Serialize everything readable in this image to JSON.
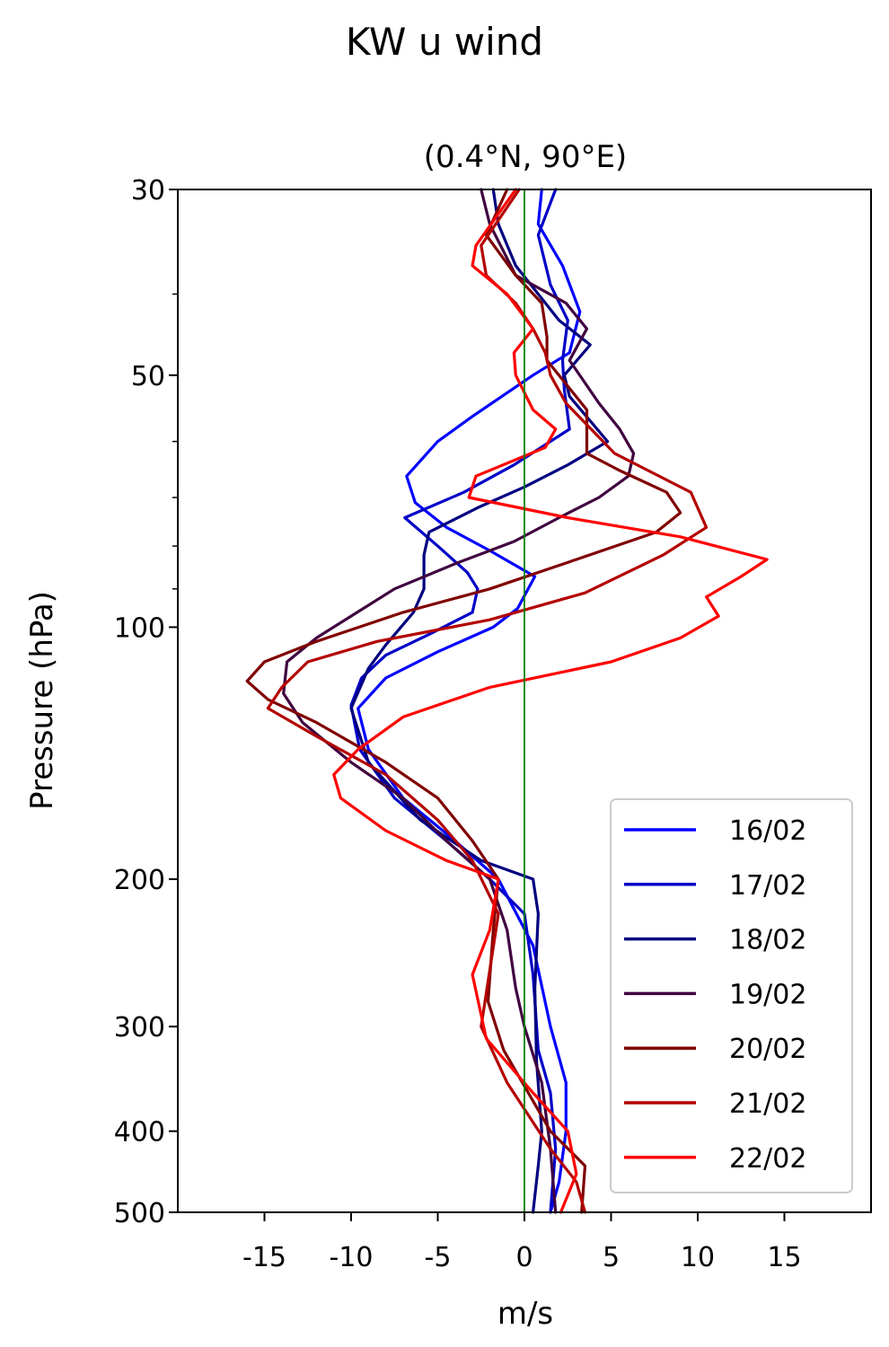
{
  "figure": {
    "suptitle": "KW u wind"
  },
  "chart_data": {
    "type": "line",
    "title": "(0.4°N, 90°E)",
    "xlabel": "m/s",
    "ylabel": "Pressure (hPa)",
    "xlim": [
      -20,
      20
    ],
    "ylim": [
      500,
      30
    ],
    "yscale": "log",
    "xticks": [
      -15,
      -10,
      -5,
      0,
      5,
      10,
      15
    ],
    "xtick_labels": [
      "-15",
      "-10",
      "-5",
      "0",
      "5",
      "10",
      "15"
    ],
    "yticks": [
      30,
      50,
      100,
      200,
      300,
      400,
      500
    ],
    "ytick_labels": [
      "30",
      "50",
      "100",
      "200",
      "300",
      "400",
      "500"
    ],
    "yminor_ticks": [
      40,
      60,
      70,
      80,
      90
    ],
    "grid": false,
    "legend_position": "lower-right",
    "reference_line": {
      "x": 0,
      "color": "#008000"
    },
    "series": [
      {
        "name": "16/02",
        "color": "#0000ff",
        "points": [
          [
            1,
            30
          ],
          [
            0.8,
            33
          ],
          [
            2.2,
            37
          ],
          [
            3.2,
            42
          ],
          [
            2.6,
            47
          ],
          [
            0.5,
            50
          ],
          [
            -3,
            56
          ],
          [
            -5,
            60
          ],
          [
            -6.8,
            66
          ],
          [
            -6.3,
            71
          ],
          [
            -4.5,
            76
          ],
          [
            -2,
            81
          ],
          [
            0.6,
            87
          ],
          [
            -0.4,
            95
          ],
          [
            -1.8,
            100
          ],
          [
            -5,
            107
          ],
          [
            -8,
            115
          ],
          [
            -9.6,
            125
          ],
          [
            -9,
            140
          ],
          [
            -7,
            160
          ],
          [
            -4,
            180
          ],
          [
            -1.5,
            200
          ],
          [
            0.5,
            240
          ],
          [
            1.5,
            300
          ],
          [
            2.4,
            350
          ],
          [
            2.4,
            400
          ],
          [
            2,
            460
          ],
          [
            1.5,
            500
          ]
        ]
      },
      {
        "name": "17/02",
        "color": "#0000c8",
        "points": [
          [
            1.8,
            30
          ],
          [
            0.8,
            34
          ],
          [
            1.5,
            39
          ],
          [
            2.5,
            43
          ],
          [
            2.2,
            48
          ],
          [
            2.3,
            52
          ],
          [
            2.6,
            58
          ],
          [
            -0.6,
            64
          ],
          [
            -3.5,
            69
          ],
          [
            -6.9,
            74
          ],
          [
            -5,
            80
          ],
          [
            -3.3,
            86
          ],
          [
            -2.7,
            90
          ],
          [
            -3,
            96
          ],
          [
            -5.5,
            102
          ],
          [
            -8,
            108
          ],
          [
            -9.4,
            115
          ],
          [
            -10,
            124
          ],
          [
            -9.5,
            140
          ],
          [
            -7.5,
            160
          ],
          [
            -4.5,
            180
          ],
          [
            -2,
            200
          ],
          [
            0,
            220
          ],
          [
            0.5,
            260
          ],
          [
            0.8,
            320
          ],
          [
            1.5,
            360
          ],
          [
            1.8,
            420
          ],
          [
            1.5,
            500
          ]
        ]
      },
      {
        "name": "18/02",
        "color": "#000080",
        "points": [
          [
            -1.8,
            30
          ],
          [
            -1.5,
            33
          ],
          [
            -0.5,
            37
          ],
          [
            0.8,
            40
          ],
          [
            2,
            43
          ],
          [
            3.8,
            46
          ],
          [
            2.3,
            50
          ],
          [
            2.6,
            53
          ],
          [
            4.8,
            60
          ],
          [
            2.5,
            64
          ],
          [
            0,
            68
          ],
          [
            -2.7,
            72
          ],
          [
            -5.5,
            77
          ],
          [
            -5.8,
            82
          ],
          [
            -5.8,
            90
          ],
          [
            -6.4,
            96
          ],
          [
            -8,
            105
          ],
          [
            -9,
            112
          ],
          [
            -10,
            125
          ],
          [
            -9,
            145
          ],
          [
            -6,
            170
          ],
          [
            -2.5,
            190
          ],
          [
            0.5,
            200
          ],
          [
            0.8,
            220
          ],
          [
            0.6,
            270
          ],
          [
            0.7,
            330
          ],
          [
            1,
            400
          ],
          [
            0.8,
            440
          ],
          [
            0.5,
            500
          ]
        ]
      },
      {
        "name": "19/02",
        "color": "#400040",
        "points": [
          [
            -2.5,
            30
          ],
          [
            -2,
            33
          ],
          [
            -0.5,
            38
          ],
          [
            2.4,
            41
          ],
          [
            3.6,
            44
          ],
          [
            2.6,
            48
          ],
          [
            4.3,
            54
          ],
          [
            5.5,
            58
          ],
          [
            6.3,
            62
          ],
          [
            6,
            66
          ],
          [
            4.3,
            70
          ],
          [
            2,
            74
          ],
          [
            -0.6,
            79
          ],
          [
            -4,
            84
          ],
          [
            -7.5,
            90
          ],
          [
            -10,
            97
          ],
          [
            -12,
            103
          ],
          [
            -13.7,
            110
          ],
          [
            -13.9,
            120
          ],
          [
            -12.8,
            130
          ],
          [
            -10,
            145
          ],
          [
            -7,
            160
          ],
          [
            -4.5,
            180
          ],
          [
            -2,
            200
          ],
          [
            -1,
            230
          ],
          [
            -0.5,
            270
          ],
          [
            0,
            300
          ],
          [
            1,
            350
          ],
          [
            1.5,
            420
          ],
          [
            1.8,
            500
          ]
        ]
      },
      {
        "name": "20/02",
        "color": "#800000",
        "points": [
          [
            -1,
            30
          ],
          [
            -2.2,
            34
          ],
          [
            -0.5,
            38
          ],
          [
            1,
            41
          ],
          [
            1.3,
            45
          ],
          [
            1.3,
            48
          ],
          [
            3.6,
            55
          ],
          [
            3.6,
            62
          ],
          [
            5.5,
            65
          ],
          [
            8.2,
            69
          ],
          [
            9,
            73
          ],
          [
            7.6,
            77
          ],
          [
            3,
            83
          ],
          [
            -2,
            90
          ],
          [
            -7,
            96
          ],
          [
            -12,
            104
          ],
          [
            -15,
            110
          ],
          [
            -16,
            116
          ],
          [
            -14.8,
            122
          ],
          [
            -12,
            130
          ],
          [
            -8,
            145
          ],
          [
            -5,
            160
          ],
          [
            -3,
            180
          ],
          [
            -1.5,
            200
          ],
          [
            -1.8,
            230
          ],
          [
            -2.1,
            280
          ],
          [
            -1.2,
            320
          ],
          [
            1.5,
            400
          ],
          [
            3.5,
            440
          ],
          [
            3.3,
            500
          ]
        ]
      },
      {
        "name": "21/02",
        "color": "#b30000",
        "points": [
          [
            -0.3,
            30
          ],
          [
            -2.5,
            35
          ],
          [
            -2.2,
            38
          ],
          [
            -0.5,
            41
          ],
          [
            0.5,
            44
          ],
          [
            1.2,
            47
          ],
          [
            1.5,
            50
          ],
          [
            2.4,
            54
          ],
          [
            5.2,
            62
          ],
          [
            9.6,
            69
          ],
          [
            10.5,
            76
          ],
          [
            8,
            82
          ],
          [
            3.5,
            91
          ],
          [
            -2,
            98
          ],
          [
            -8.5,
            104
          ],
          [
            -12.5,
            110
          ],
          [
            -14,
            118
          ],
          [
            -14.8,
            125
          ],
          [
            -12,
            135
          ],
          [
            -8,
            150
          ],
          [
            -5,
            170
          ],
          [
            -3,
            190
          ],
          [
            -1.5,
            220
          ],
          [
            -2.5,
            300
          ],
          [
            -1,
            350
          ],
          [
            1.5,
            420
          ],
          [
            3,
            460
          ],
          [
            3.5,
            500
          ]
        ]
      },
      {
        "name": "22/02",
        "color": "#ff0000",
        "points": [
          [
            -0.5,
            30
          ],
          [
            -2.8,
            35
          ],
          [
            -3,
            37
          ],
          [
            -1,
            40
          ],
          [
            0.5,
            44
          ],
          [
            -0.6,
            47
          ],
          [
            -0.5,
            50
          ],
          [
            0.5,
            55
          ],
          [
            1.8,
            58
          ],
          [
            1.2,
            61
          ],
          [
            -2.8,
            66
          ],
          [
            -3.2,
            70
          ],
          [
            2.5,
            74
          ],
          [
            9,
            78
          ],
          [
            14,
            83
          ],
          [
            12.5,
            87
          ],
          [
            10.5,
            92
          ],
          [
            11.2,
            97
          ],
          [
            9,
            103
          ],
          [
            5,
            110
          ],
          [
            -2,
            118
          ],
          [
            -7,
            128
          ],
          [
            -9.6,
            140
          ],
          [
            -11,
            150
          ],
          [
            -10.6,
            160
          ],
          [
            -8,
            175
          ],
          [
            -4.5,
            190
          ],
          [
            -1.5,
            200
          ],
          [
            -2,
            230
          ],
          [
            -3,
            260
          ],
          [
            -2.2,
            310
          ],
          [
            0.5,
            360
          ],
          [
            2.5,
            400
          ],
          [
            3,
            450
          ],
          [
            2.1,
            500
          ]
        ]
      }
    ]
  }
}
